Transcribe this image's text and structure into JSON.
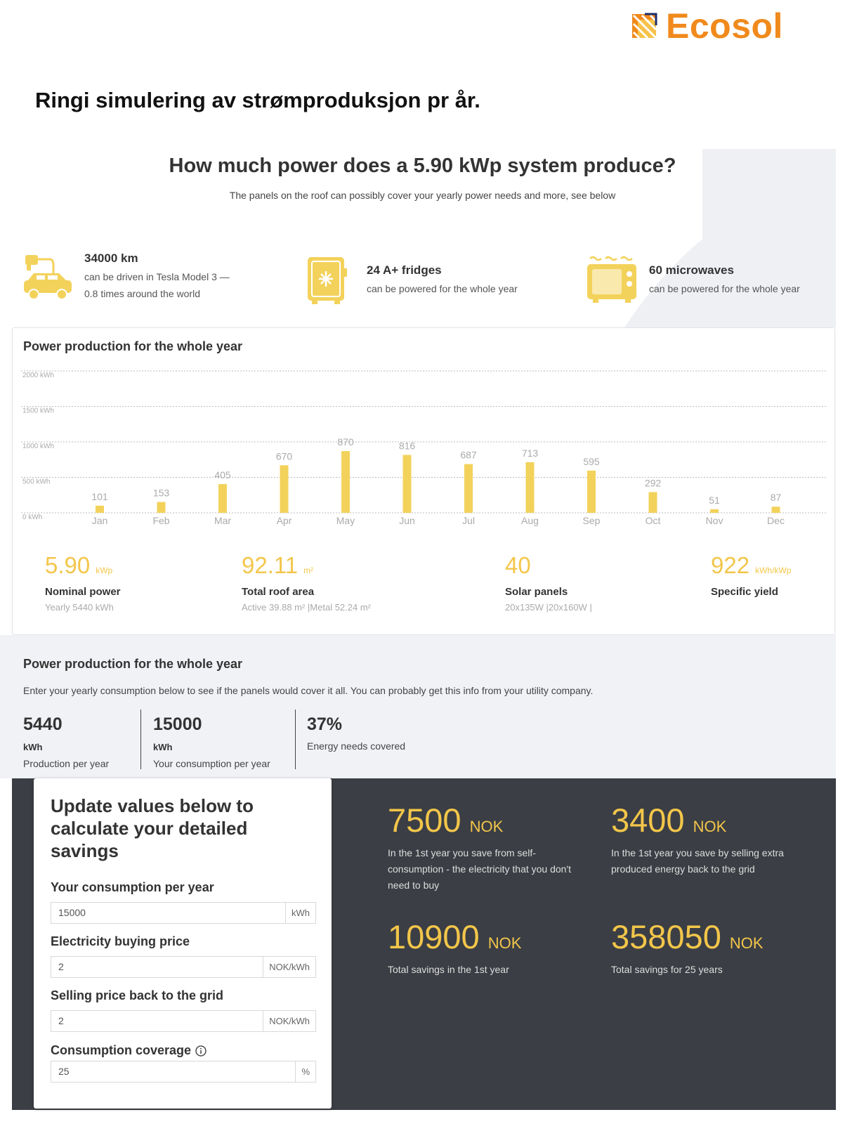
{
  "brand": {
    "name": "Ecosol"
  },
  "doc_title": "Ringi simulering av strømproduksjon pr år.",
  "hero": {
    "title": "How much power does a 5.90 kWp system produce?",
    "subtitle": "The panels on the roof can possibly cover your yearly power needs and more, see below"
  },
  "facts": [
    {
      "icon": "car-charger-icon",
      "title": "34000 km",
      "desc_line1": "can be driven in Tesla Model 3 —",
      "desc_line2": "0.8 times around the world"
    },
    {
      "icon": "fridge-icon",
      "title": "24 A+ fridges",
      "desc_line1": "can be powered for the whole year",
      "desc_line2": ""
    },
    {
      "icon": "microwave-icon",
      "title": "60 microwaves",
      "desc_line1": "can be powered for the whole year",
      "desc_line2": ""
    }
  ],
  "production": {
    "title": "Power production for the whole year",
    "kpis": [
      {
        "value": "5.90",
        "unit": "kWp",
        "label": "Nominal power",
        "sub": "Yearly 5440 kWh"
      },
      {
        "value": "92.11",
        "unit": "m²",
        "label": "Total roof area",
        "sub": "Active 39.88 m² |Metal 52.24 m²"
      },
      {
        "value": "40",
        "unit": "",
        "label": "Solar panels",
        "sub": "20x135W |20x160W |"
      },
      {
        "value": "922",
        "unit": "kWh/kWp",
        "label": "Specific yield",
        "sub": ""
      }
    ]
  },
  "chart_data": {
    "type": "bar",
    "categories": [
      "Jan",
      "Feb",
      "Mar",
      "Apr",
      "May",
      "Jun",
      "Jul",
      "Aug",
      "Sep",
      "Oct",
      "Nov",
      "Dec"
    ],
    "values": [
      101,
      153,
      405,
      670,
      870,
      816,
      687,
      713,
      595,
      292,
      51,
      87
    ],
    "y_ticks": [
      "2000 kWh",
      "1500 kWh",
      "1000 kWh",
      "500 kWh",
      "0 kWh"
    ],
    "ylim": [
      0,
      2000
    ],
    "bar_color": "#f3d25b",
    "grid": true
  },
  "consumption": {
    "title": "Power production for the whole year",
    "desc": "Enter your yearly consumption below to see if the panels would cover it all. You can probably get this info from your utility company.",
    "stats": [
      {
        "value": "5440",
        "unit": "kWh",
        "label": "Production per year"
      },
      {
        "value": "15000",
        "unit": "kWh",
        "label": "Your consumption per year"
      },
      {
        "value": "37%",
        "unit": "",
        "label": "Energy needs covered"
      }
    ]
  },
  "form": {
    "heading": "Update values below to calculate your detailed savings",
    "fields": [
      {
        "label": "Your consumption per year",
        "value": "15000",
        "unit": "kWh"
      },
      {
        "label": "Electricity buying price",
        "value": "2",
        "unit": "NOK/kWh"
      },
      {
        "label": "Selling price back to the grid",
        "value": "2",
        "unit": "NOK/kWh"
      },
      {
        "label": "Consumption coverage",
        "value": "25",
        "unit": "%"
      }
    ],
    "info_icon": "info-icon"
  },
  "savings": [
    {
      "value": "7500",
      "unit": "NOK",
      "desc": "In the 1st year you save from self-consumption - the electricity that you don't need to buy"
    },
    {
      "value": "3400",
      "unit": "NOK",
      "desc": "In the 1st year you save by selling extra produced energy back to the grid"
    },
    {
      "value": "10900",
      "unit": "NOK",
      "desc": "Total savings in the 1st year"
    },
    {
      "value": "358050",
      "unit": "NOK",
      "desc": "Total savings for 25 years"
    }
  ],
  "colors": {
    "accent": "#f3c64a",
    "brand": "#f08a1c",
    "dark_panel": "#3b3e44",
    "light_panel": "#f0f2f6"
  }
}
